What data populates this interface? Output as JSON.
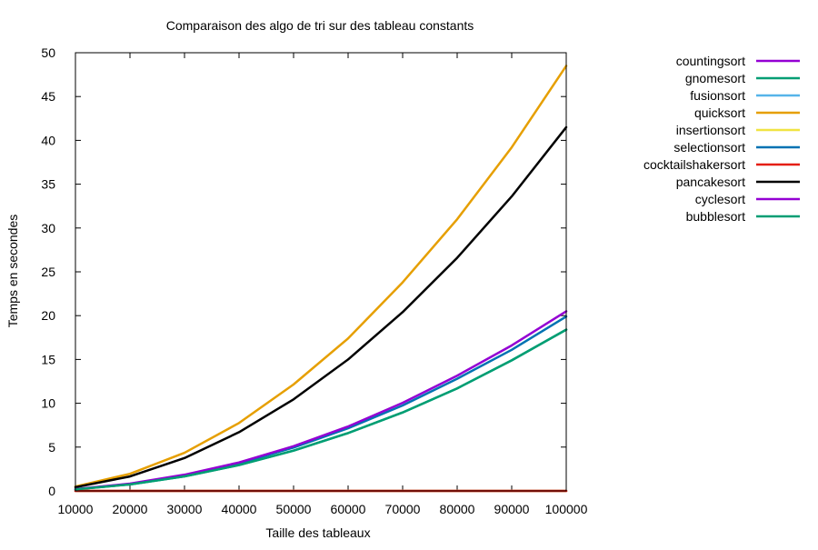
{
  "chart_data": {
    "type": "line",
    "title": "Comparaison des algo de tri sur des tableau constants",
    "xlabel": "Taille des tableaux",
    "ylabel": "Temps en secondes",
    "xlim": [
      10000,
      100000
    ],
    "ylim": [
      0,
      50
    ],
    "x": [
      10000,
      20000,
      30000,
      40000,
      50000,
      60000,
      70000,
      80000,
      90000,
      100000
    ],
    "x_ticks": [
      "10000",
      "20000",
      "30000",
      "40000",
      "50000",
      "60000",
      "70000",
      "80000",
      "90000",
      "100000"
    ],
    "y_ticks": [
      0,
      5,
      10,
      15,
      20,
      25,
      30,
      35,
      40,
      45,
      50
    ],
    "grid": false,
    "legend_position": "outside-right",
    "series": [
      {
        "name": "countingsort",
        "color": "#9400d3",
        "values": [
          0,
          0,
          0,
          0,
          0,
          0,
          0,
          0,
          0,
          0
        ]
      },
      {
        "name": "gnomesort",
        "color": "#009e73",
        "values": [
          0.18,
          0.74,
          1.66,
          2.95,
          4.6,
          6.6,
          8.95,
          11.7,
          14.9,
          18.4
        ]
      },
      {
        "name": "fusionsort",
        "color": "#56b4e9",
        "values": [
          0,
          0,
          0,
          0,
          0,
          0,
          0,
          0,
          0,
          0
        ]
      },
      {
        "name": "quicksort",
        "color": "#e69f00",
        "values": [
          0.5,
          1.95,
          4.35,
          7.75,
          12.15,
          17.4,
          23.8,
          31.0,
          39.2,
          48.5
        ]
      },
      {
        "name": "insertionsort",
        "color": "#f0e442",
        "values": [
          0,
          0,
          0,
          0,
          0,
          0,
          0,
          0,
          0,
          0
        ]
      },
      {
        "name": "selectionsort",
        "color": "#0072b2",
        "values": [
          0.2,
          0.8,
          1.78,
          3.15,
          4.95,
          7.15,
          9.75,
          12.8,
          16.1,
          19.9
        ]
      },
      {
        "name": "cocktailshakersort",
        "color": "#e51e10",
        "values": [
          0,
          0,
          0,
          0,
          0,
          0,
          0,
          0,
          0,
          0
        ]
      },
      {
        "name": "pancakesort",
        "color": "#000000",
        "values": [
          0.42,
          1.65,
          3.75,
          6.7,
          10.45,
          15.0,
          20.4,
          26.6,
          33.6,
          41.5
        ]
      },
      {
        "name": "cyclesort",
        "color": "#9400d3",
        "values": [
          0.21,
          0.83,
          1.85,
          3.25,
          5.1,
          7.35,
          10.05,
          13.15,
          16.6,
          20.5
        ]
      },
      {
        "name": "bubblesort",
        "color": "#009e73",
        "values": [
          0.18,
          0.74,
          1.66,
          2.95,
          4.6,
          6.6,
          8.95,
          11.7,
          14.9,
          18.4
        ]
      }
    ]
  }
}
